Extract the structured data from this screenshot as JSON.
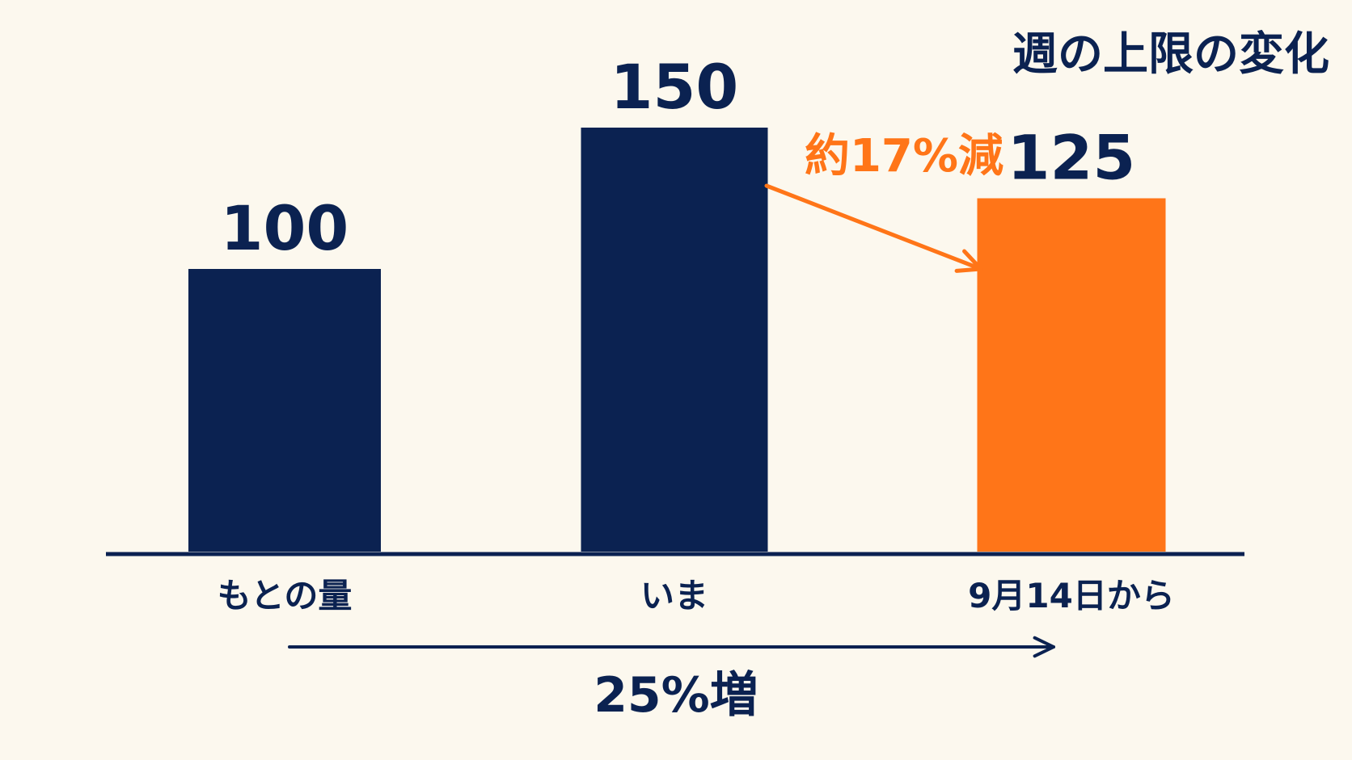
{
  "chart_data": {
    "type": "bar",
    "title": "週の上限の変化",
    "categories": [
      "もとの量",
      "いま",
      "9月14日から"
    ],
    "values": [
      100,
      150,
      125
    ],
    "value_labels": [
      "100",
      "150",
      "125"
    ],
    "bar_colors": [
      "#0b2251",
      "#0b2251",
      "#ff7518"
    ],
    "xlabel": "",
    "ylabel": "",
    "ylim": [
      0,
      170
    ],
    "grid": false,
    "annotations": [
      {
        "text": "約17%減",
        "from_category": "いま",
        "to_category": "9月14日から",
        "color": "#ff7518"
      },
      {
        "text": "25%増",
        "from_category": "もとの量",
        "to_category": "9月14日から",
        "color": "#0b2251"
      }
    ]
  },
  "colors": {
    "background": "#fcf8ee",
    "primary": "#0b2251",
    "accent": "#ff7518"
  }
}
